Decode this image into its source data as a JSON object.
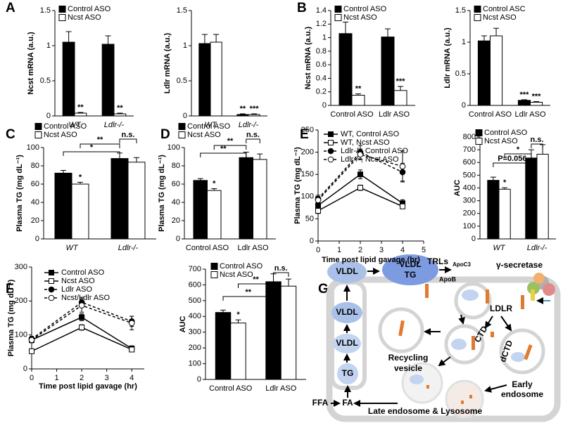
{
  "chart_data": [
    {
      "type": "bar",
      "panel": "A",
      "ylabel": "Ncst mRNA (a.u.)",
      "categories": [
        "WT",
        "Ldlr-/-"
      ],
      "series": [
        {
          "name": "Control ASO",
          "color": "#000000",
          "values": [
            1.05,
            1.02
          ],
          "errors": [
            0.15,
            0.12
          ]
        },
        {
          "name": "Ncst ASO",
          "color": "#ffffff",
          "values": [
            0.04,
            0.03
          ],
          "errors": [
            0.01,
            0.01
          ]
        }
      ],
      "ylim": [
        0,
        1.5
      ],
      "yticks": [
        0,
        0.5,
        1,
        1.5
      ],
      "annotations": [
        "**",
        "**"
      ],
      "legend": "upper left"
    },
    {
      "type": "bar",
      "ylabel": "Ldlr mRNA (a.u.)",
      "categories": [
        "WT",
        "Ldlr-/-"
      ],
      "series": [
        {
          "color": "#000000",
          "values": [
            1.03,
            0.02
          ],
          "errors": [
            0.13,
            0.01
          ]
        },
        {
          "color": "#ffffff",
          "values": [
            1.05,
            0.02
          ],
          "errors": [
            0.11,
            0.01
          ]
        }
      ],
      "ylim": [
        0,
        1.5
      ],
      "yticks": [
        0,
        0.5,
        1,
        1.5
      ],
      "annotations": [
        "**",
        "***"
      ]
    },
    {
      "type": "bar",
      "panel": "B",
      "ylabel": "Ncst mRNA (a.u.)",
      "categories": [
        "Control ASO",
        "Ldlr ASO"
      ],
      "series": [
        {
          "name": "Control ASO",
          "color": "#000000",
          "values": [
            1.06,
            1.01
          ],
          "errors": [
            0.17,
            0.12
          ]
        },
        {
          "name": "Ncst ASO",
          "color": "#ffffff",
          "values": [
            0.15,
            0.22
          ],
          "errors": [
            0.02,
            0.06
          ]
        }
      ],
      "ylim": [
        0,
        1.4
      ],
      "yticks": [
        0,
        0.2,
        0.4,
        0.6,
        0.8,
        1,
        1.2,
        1.4
      ],
      "annotations": [
        "**",
        "***"
      ],
      "legend": "upper left"
    },
    {
      "type": "bar",
      "ylabel": "Ldlr mRNA (a.u.)",
      "categories": [
        "Control ASO",
        "Ldlr ASO"
      ],
      "series": [
        {
          "name": "Control ASC",
          "color": "#000000",
          "values": [
            1.02,
            0.08
          ],
          "errors": [
            0.08,
            0.01
          ]
        },
        {
          "name": "Ncst ASO",
          "color": "#ffffff",
          "values": [
            1.1,
            0.05
          ],
          "errors": [
            0.12,
            0.01
          ]
        }
      ],
      "ylim": [
        0,
        1.5
      ],
      "yticks": [
        0,
        0.5,
        1,
        1.5
      ],
      "annotations": [
        "***",
        "***"
      ],
      "legend": "upper left"
    },
    {
      "type": "bar",
      "panel": "C",
      "ylabel": "Plasma TG (mg dL⁻¹)",
      "categories": [
        "WT",
        "Ldlr-/-"
      ],
      "series": [
        {
          "name": "Control ASO",
          "color": "#000000",
          "values": [
            72,
            88
          ],
          "errors": [
            3,
            6
          ]
        },
        {
          "name": "Ncst ASO",
          "color": "#ffffff",
          "values": [
            60,
            84
          ],
          "errors": [
            2,
            5
          ]
        }
      ],
      "ylim": [
        0,
        100
      ],
      "yticks": [
        0,
        20,
        40,
        60,
        80,
        100
      ],
      "annotations": [
        "*",
        "*",
        "**",
        "n.s."
      ],
      "legend": "upper left"
    },
    {
      "type": "bar",
      "panel": "D",
      "ylabel": "Plasma TG (mg dL⁻¹)",
      "categories": [
        "Control ASO",
        "Ldlr ASO"
      ],
      "series": [
        {
          "name": "Control ASO",
          "color": "#000000",
          "values": [
            64,
            89
          ],
          "errors": [
            2,
            6
          ]
        },
        {
          "name": "Ncst ASO",
          "color": "#ffffff",
          "values": [
            53,
            87
          ],
          "errors": [
            2,
            6
          ]
        }
      ],
      "ylim": [
        0,
        100
      ],
      "yticks": [
        0,
        20,
        40,
        60,
        80,
        100
      ],
      "annotations": [
        "*",
        "**",
        "**",
        "n.s."
      ],
      "legend": "upper left"
    },
    {
      "type": "line",
      "panel": "E",
      "xlabel": "Time post lipid gavage (hr)",
      "ylabel": "Plasma TG (mg dL⁻¹)",
      "x": [
        0,
        2,
        4
      ],
      "xlim": [
        0,
        5
      ],
      "xticks": [
        0,
        1,
        2,
        3,
        4,
        5
      ],
      "ylim": [
        0,
        250
      ],
      "yticks": [
        0,
        50,
        100,
        150,
        200,
        250
      ],
      "series": [
        {
          "name": "WT, Control ASO",
          "color": "#000000",
          "marker": "square",
          "fill": "filled",
          "linestyle": "solid",
          "values": [
            80,
            150,
            85
          ],
          "errors": [
            8,
            10,
            8
          ]
        },
        {
          "name": "WT, Ncst ASO",
          "color": "#000000",
          "marker": "square",
          "fill": "open",
          "linestyle": "solid",
          "values": [
            68,
            120,
            78
          ],
          "errors": [
            6,
            6,
            5
          ]
        },
        {
          "name": "Ldlr-/-, Control ASO",
          "color": "#000000",
          "marker": "circle",
          "fill": "filled",
          "linestyle": "dashed",
          "values": [
            95,
            200,
            155
          ],
          "errors": [
            8,
            15,
            20
          ]
        },
        {
          "name": "Ldlr-/-, Ncst ASO",
          "color": "#000000",
          "marker": "circle",
          "fill": "open",
          "linestyle": "dashed",
          "values": [
            92,
            195,
            168
          ],
          "errors": [
            8,
            12,
            35
          ]
        }
      ],
      "legend": "upper left"
    },
    {
      "type": "bar",
      "ylabel": "AUC",
      "categories": [
        "WT",
        "Ldlr-/-"
      ],
      "series": [
        {
          "name": "Control ASO",
          "color": "#000000",
          "values": [
            460,
            635
          ],
          "errors": [
            25,
            65
          ]
        },
        {
          "name": "Ncst ASO",
          "color": "#ffffff",
          "values": [
            390,
            665
          ],
          "errors": [
            12,
            75
          ]
        }
      ],
      "ylim": [
        0,
        800
      ],
      "yticks": [
        0,
        100,
        200,
        300,
        400,
        500,
        600,
        700,
        800
      ],
      "annotations": [
        "*",
        "*",
        "P=0.056",
        "n.s."
      ],
      "legend": "upper left"
    },
    {
      "type": "line",
      "panel": "F",
      "xlabel": "Time post lipid gavage (hr)",
      "ylabel": "Plasma TG (mg dL⁻¹)",
      "x": [
        0,
        2,
        4
      ],
      "xlim": [
        0,
        4.5
      ],
      "xticks": [
        0,
        1,
        2,
        3,
        4
      ],
      "ylim": [
        0,
        300
      ],
      "yticks": [
        0,
        100,
        200,
        300
      ],
      "series": [
        {
          "name": "Control ASO",
          "color": "#000000",
          "marker": "square",
          "fill": "filled",
          "linestyle": "solid",
          "values": [
            85,
            152,
            60
          ],
          "errors": [
            8,
            10,
            8
          ]
        },
        {
          "name": "Ncst ASO",
          "color": "#000000",
          "marker": "square",
          "fill": "open",
          "linestyle": "solid",
          "values": [
            52,
            122,
            57
          ],
          "errors": [
            5,
            8,
            5
          ]
        },
        {
          "name": "Ldlr ASO",
          "color": "#000000",
          "marker": "circle",
          "fill": "filled",
          "linestyle": "dashed",
          "values": [
            88,
            196,
            140
          ],
          "errors": [
            8,
            15,
            15
          ]
        },
        {
          "name": "Ncst/Ldlr ASO",
          "color": "#000000",
          "marker": "circle",
          "fill": "open",
          "linestyle": "dashed",
          "values": [
            85,
            187,
            135
          ],
          "errors": [
            8,
            20,
            20
          ]
        }
      ],
      "legend": "upper left"
    },
    {
      "type": "bar",
      "ylabel": "AUC",
      "categories": [
        "Control ASO",
        "Ldlr ASO"
      ],
      "series": [
        {
          "name": "Control ASO",
          "color": "#000000",
          "values": [
            425,
            620
          ],
          "errors": [
            15,
            50
          ]
        },
        {
          "name": "Ncst ASO",
          "color": "#ffffff",
          "values": [
            358,
            592
          ],
          "errors": [
            20,
            45
          ]
        }
      ],
      "ylim": [
        0,
        700
      ],
      "yticks": [
        0,
        100,
        200,
        300,
        400,
        500,
        600,
        700
      ],
      "annotations": [
        "*",
        "**",
        "**",
        "n.s."
      ],
      "legend": "upper left"
    }
  ],
  "diagram": {
    "panel": "G",
    "labels": [
      "VLDL",
      "VLDL",
      "TG",
      "TRLs",
      "ApoC3",
      "γ-secretase",
      "ApoB",
      "LDLR",
      "CTD",
      "dCTD",
      "VLDL",
      "VLDL",
      "TG",
      "FFA",
      "FA",
      "Recycling",
      "vesicle",
      "Early",
      "endosome",
      "Late endosome & Lysosome"
    ]
  }
}
